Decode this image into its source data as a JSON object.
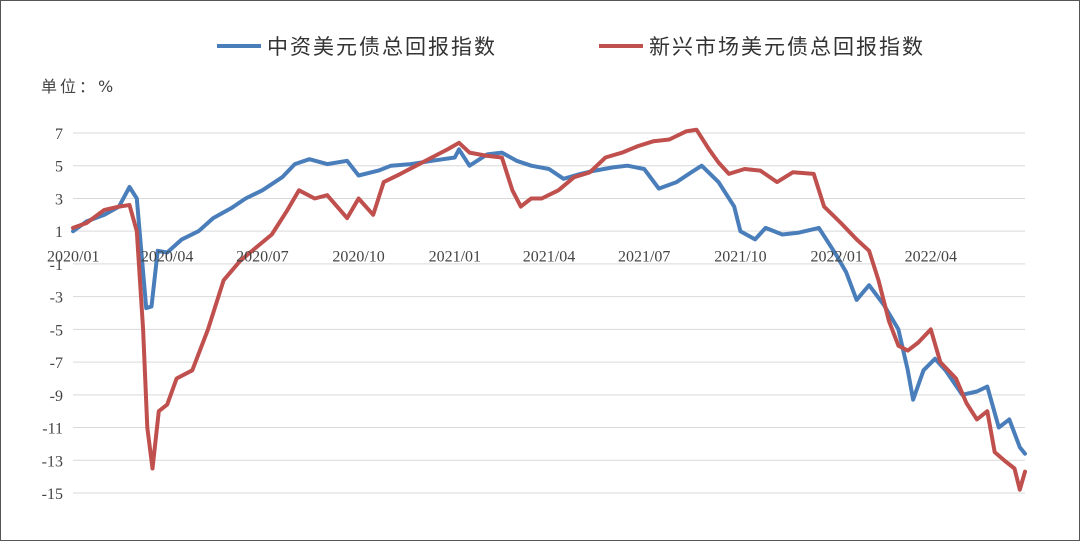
{
  "chart_data": {
    "type": "line",
    "unit_label": "单位：%",
    "legend_placement": "top",
    "grid": true,
    "ylim": [
      -15,
      7
    ],
    "y_ticks": [
      7,
      5,
      3,
      1,
      -1,
      -3,
      -5,
      -7,
      -9,
      -11,
      -13,
      -15
    ],
    "x_range": [
      "2020-01-02",
      "2022-06-30"
    ],
    "x_ticks": [
      {
        "date": "2020-01-02",
        "label": "2020/01"
      },
      {
        "date": "2020-04-01",
        "label": "2020/04"
      },
      {
        "date": "2020-07-01",
        "label": "2020/07"
      },
      {
        "date": "2020-10-01",
        "label": "2020/10"
      },
      {
        "date": "2021-01-01",
        "label": "2021/01"
      },
      {
        "date": "2021-04-01",
        "label": "2021/04"
      },
      {
        "date": "2021-07-01",
        "label": "2021/07"
      },
      {
        "date": "2021-10-01",
        "label": "2021/10"
      },
      {
        "date": "2022-01-01",
        "label": "2022/01"
      },
      {
        "date": "2022-04-01",
        "label": "2022/04"
      }
    ],
    "series": [
      {
        "name": "中资美元债总回报指数",
        "color": "#4a7ebb",
        "points": [
          [
            "2020-01-02",
            1.0
          ],
          [
            "2020-01-15",
            1.6
          ],
          [
            "2020-02-01",
            2.0
          ],
          [
            "2020-02-15",
            2.5
          ],
          [
            "2020-02-25",
            3.7
          ],
          [
            "2020-03-03",
            3.0
          ],
          [
            "2020-03-09",
            -1.5
          ],
          [
            "2020-03-12",
            -3.7
          ],
          [
            "2020-03-17",
            -3.6
          ],
          [
            "2020-03-23",
            -0.2
          ],
          [
            "2020-04-01",
            -0.3
          ],
          [
            "2020-04-15",
            0.5
          ],
          [
            "2020-05-01",
            1.0
          ],
          [
            "2020-05-15",
            1.8
          ],
          [
            "2020-06-01",
            2.4
          ],
          [
            "2020-06-15",
            3.0
          ],
          [
            "2020-07-01",
            3.5
          ],
          [
            "2020-07-20",
            4.3
          ],
          [
            "2020-08-01",
            5.1
          ],
          [
            "2020-08-15",
            5.4
          ],
          [
            "2020-09-01",
            5.1
          ],
          [
            "2020-09-20",
            5.3
          ],
          [
            "2020-10-01",
            4.4
          ],
          [
            "2020-10-20",
            4.7
          ],
          [
            "2020-11-01",
            5.0
          ],
          [
            "2020-11-20",
            5.1
          ],
          [
            "2020-12-10",
            5.3
          ],
          [
            "2021-01-01",
            5.5
          ],
          [
            "2021-01-05",
            6.0
          ],
          [
            "2021-01-15",
            5.0
          ],
          [
            "2021-02-01",
            5.7
          ],
          [
            "2021-02-15",
            5.8
          ],
          [
            "2021-03-01",
            5.3
          ],
          [
            "2021-03-15",
            5.0
          ],
          [
            "2021-04-01",
            4.8
          ],
          [
            "2021-04-15",
            4.2
          ],
          [
            "2021-05-01",
            4.5
          ],
          [
            "2021-05-15",
            4.7
          ],
          [
            "2021-06-01",
            4.9
          ],
          [
            "2021-06-15",
            5.0
          ],
          [
            "2021-07-01",
            4.8
          ],
          [
            "2021-07-15",
            3.6
          ],
          [
            "2021-08-01",
            4.0
          ],
          [
            "2021-08-15",
            4.6
          ],
          [
            "2021-08-25",
            5.0
          ],
          [
            "2021-09-10",
            4.0
          ],
          [
            "2021-09-25",
            2.5
          ],
          [
            "2021-10-01",
            1.0
          ],
          [
            "2021-10-15",
            0.5
          ],
          [
            "2021-10-25",
            1.2
          ],
          [
            "2021-11-10",
            0.8
          ],
          [
            "2021-11-25",
            0.9
          ],
          [
            "2021-12-15",
            1.2
          ],
          [
            "2022-01-01",
            -0.5
          ],
          [
            "2022-01-10",
            -1.5
          ],
          [
            "2022-01-20",
            -3.2
          ],
          [
            "2022-02-01",
            -2.3
          ],
          [
            "2022-02-15",
            -3.5
          ],
          [
            "2022-03-01",
            -5.0
          ],
          [
            "2022-03-10",
            -7.5
          ],
          [
            "2022-03-15",
            -9.3
          ],
          [
            "2022-03-25",
            -7.5
          ],
          [
            "2022-04-05",
            -6.8
          ],
          [
            "2022-04-15",
            -7.5
          ],
          [
            "2022-05-01",
            -9.0
          ],
          [
            "2022-05-15",
            -8.8
          ],
          [
            "2022-05-25",
            -8.5
          ],
          [
            "2022-06-05",
            -11.0
          ],
          [
            "2022-06-15",
            -10.5
          ],
          [
            "2022-06-25",
            -12.2
          ],
          [
            "2022-06-30",
            -12.6
          ]
        ]
      },
      {
        "name": "新兴市场美元债总回报指数",
        "color": "#c0504d",
        "points": [
          [
            "2020-01-02",
            1.2
          ],
          [
            "2020-01-15",
            1.5
          ],
          [
            "2020-02-01",
            2.3
          ],
          [
            "2020-02-15",
            2.5
          ],
          [
            "2020-02-25",
            2.6
          ],
          [
            "2020-03-03",
            1.0
          ],
          [
            "2020-03-09",
            -5.0
          ],
          [
            "2020-03-13",
            -11.0
          ],
          [
            "2020-03-18",
            -13.5
          ],
          [
            "2020-03-24",
            -10.0
          ],
          [
            "2020-04-01",
            -9.6
          ],
          [
            "2020-04-10",
            -8.0
          ],
          [
            "2020-04-25",
            -7.5
          ],
          [
            "2020-05-10",
            -5.0
          ],
          [
            "2020-05-25",
            -2.0
          ],
          [
            "2020-06-10",
            -0.8
          ],
          [
            "2020-06-25",
            0.0
          ],
          [
            "2020-07-10",
            0.8
          ],
          [
            "2020-07-25",
            2.3
          ],
          [
            "2020-08-05",
            3.5
          ],
          [
            "2020-08-20",
            3.0
          ],
          [
            "2020-09-01",
            3.2
          ],
          [
            "2020-09-20",
            1.8
          ],
          [
            "2020-10-01",
            3.0
          ],
          [
            "2020-10-15",
            2.0
          ],
          [
            "2020-10-25",
            4.0
          ],
          [
            "2020-11-10",
            4.5
          ],
          [
            "2020-11-25",
            5.0
          ],
          [
            "2020-12-10",
            5.5
          ],
          [
            "2020-12-25",
            6.0
          ],
          [
            "2021-01-05",
            6.4
          ],
          [
            "2021-01-15",
            5.8
          ],
          [
            "2021-02-01",
            5.6
          ],
          [
            "2021-02-15",
            5.5
          ],
          [
            "2021-02-25",
            3.5
          ],
          [
            "2021-03-05",
            2.5
          ],
          [
            "2021-03-15",
            3.0
          ],
          [
            "2021-03-25",
            3.0
          ],
          [
            "2021-04-10",
            3.5
          ],
          [
            "2021-04-25",
            4.3
          ],
          [
            "2021-05-10",
            4.6
          ],
          [
            "2021-05-25",
            5.5
          ],
          [
            "2021-06-10",
            5.8
          ],
          [
            "2021-06-25",
            6.2
          ],
          [
            "2021-07-10",
            6.5
          ],
          [
            "2021-07-25",
            6.6
          ],
          [
            "2021-08-10",
            7.1
          ],
          [
            "2021-08-20",
            7.2
          ],
          [
            "2021-09-01",
            6.0
          ],
          [
            "2021-09-10",
            5.2
          ],
          [
            "2021-09-20",
            4.5
          ],
          [
            "2021-10-05",
            4.8
          ],
          [
            "2021-10-20",
            4.7
          ],
          [
            "2021-11-05",
            4.0
          ],
          [
            "2021-11-20",
            4.6
          ],
          [
            "2021-12-10",
            4.5
          ],
          [
            "2021-12-20",
            2.5
          ],
          [
            "2022-01-05",
            1.5
          ],
          [
            "2022-01-20",
            0.5
          ],
          [
            "2022-02-01",
            -0.2
          ],
          [
            "2022-02-10",
            -2.0
          ],
          [
            "2022-02-20",
            -4.5
          ],
          [
            "2022-03-01",
            -6.0
          ],
          [
            "2022-03-10",
            -6.3
          ],
          [
            "2022-03-20",
            -5.8
          ],
          [
            "2022-04-01",
            -5.0
          ],
          [
            "2022-04-10",
            -7.0
          ],
          [
            "2022-04-25",
            -8.0
          ],
          [
            "2022-05-05",
            -9.5
          ],
          [
            "2022-05-15",
            -10.5
          ],
          [
            "2022-05-25",
            -10.0
          ],
          [
            "2022-06-01",
            -12.5
          ],
          [
            "2022-06-10",
            -13.0
          ],
          [
            "2022-06-20",
            -13.5
          ],
          [
            "2022-06-25",
            -14.8
          ],
          [
            "2022-06-30",
            -13.7
          ]
        ]
      }
    ]
  }
}
